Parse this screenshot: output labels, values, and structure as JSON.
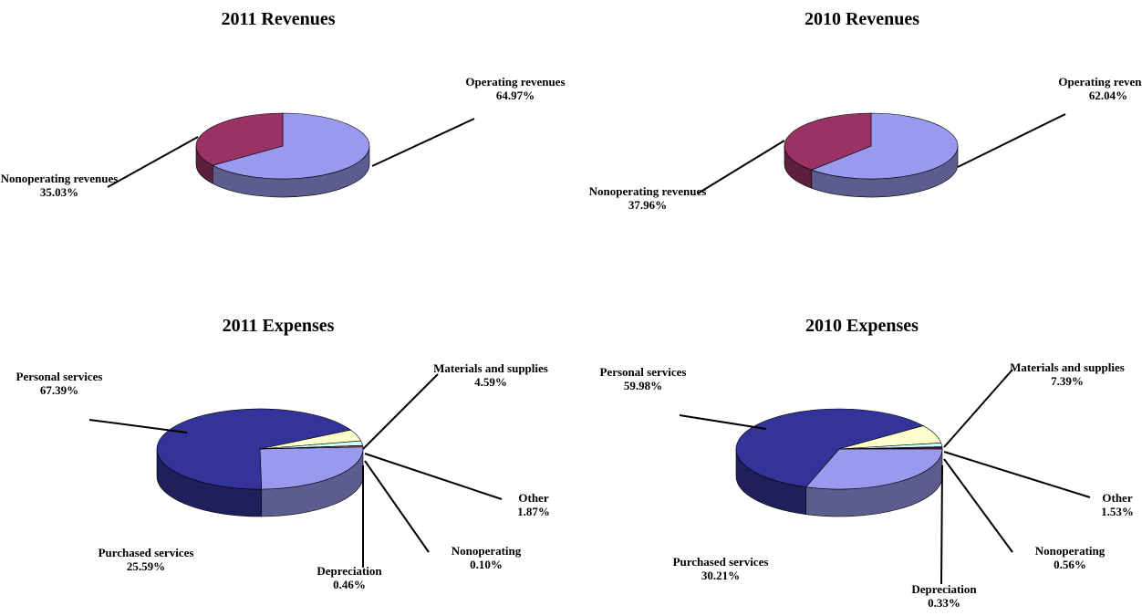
{
  "chart_data": [
    {
      "type": "pie",
      "title": "2011 Revenues",
      "categories": [
        "Operating revenues",
        "Nonoperating revenues"
      ],
      "values": [
        64.97,
        35.03
      ],
      "value_labels": [
        "64.97%",
        "35.03%"
      ],
      "colors": [
        "#9999ee",
        "#993366"
      ]
    },
    {
      "type": "pie",
      "title": "2010 Revenues",
      "categories": [
        "Operating revenues",
        "Nonoperating revenues"
      ],
      "values": [
        62.04,
        37.96
      ],
      "value_labels": [
        "62.04%",
        "37.96%"
      ],
      "colors": [
        "#9999ee",
        "#993366"
      ]
    },
    {
      "type": "pie",
      "title": "2011 Expenses",
      "categories": [
        "Purchased services",
        "Personal services",
        "Materials and supplies",
        "Other",
        "Nonoperating",
        "Depreciation"
      ],
      "values": [
        25.59,
        67.39,
        4.59,
        1.87,
        0.1,
        0.46
      ],
      "value_labels": [
        "25.59%",
        "67.39%",
        "4.59%",
        "1.87%",
        "0.10%",
        "0.46%"
      ],
      "colors": [
        "#9999ee",
        "#333399",
        "#ffffcc",
        "#ccffff",
        "#660066",
        "#ff8080"
      ]
    },
    {
      "type": "pie",
      "title": "2010 Expenses",
      "categories": [
        "Purchased services",
        "Personal services",
        "Materials and supplies",
        "Other",
        "Nonoperating",
        "Depreciation"
      ],
      "values": [
        30.21,
        59.98,
        7.39,
        1.53,
        0.56,
        0.33
      ],
      "value_labels": [
        "30.21%",
        "59.98%",
        "7.39%",
        "1.53%",
        "0.56%",
        "0.33%"
      ],
      "colors": [
        "#9999ee",
        "#333399",
        "#ffffcc",
        "#ccffff",
        "#660066",
        "#ff8080"
      ]
    }
  ]
}
